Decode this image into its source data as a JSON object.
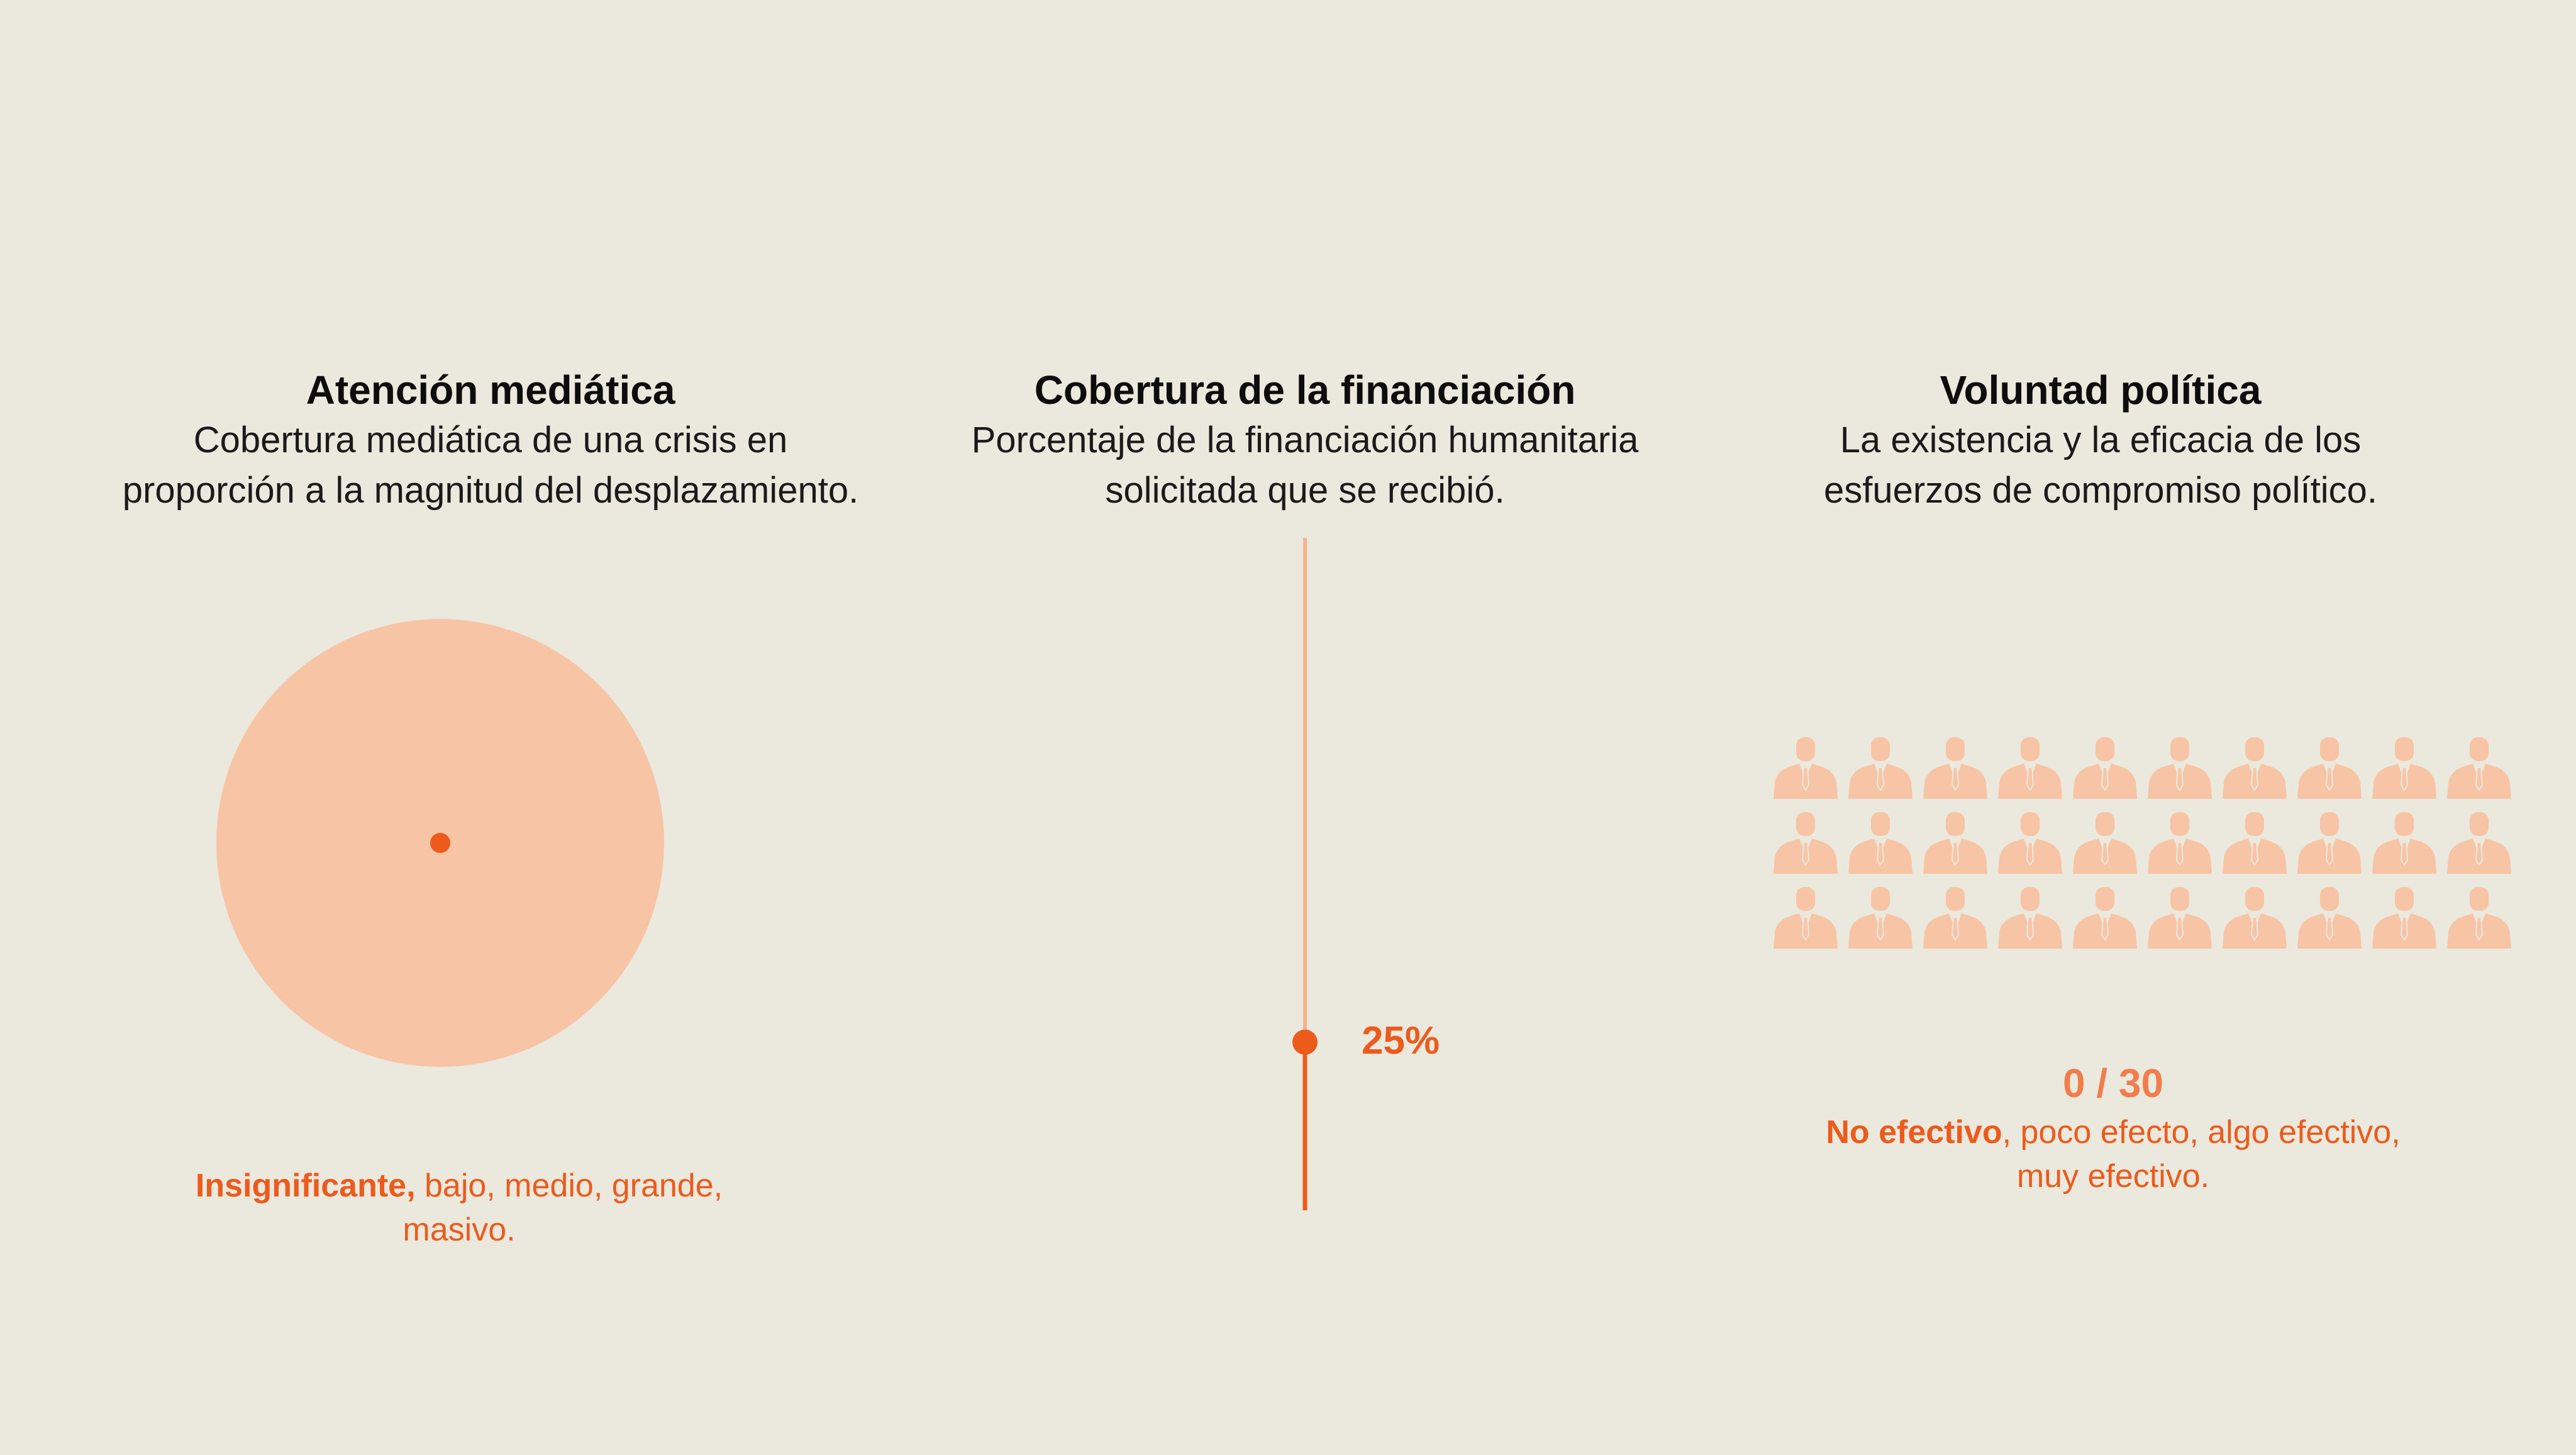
{
  "colors": {
    "background": "#ebe8dd",
    "accent": "#ec5a1c",
    "accent_light": "#f7c4a5",
    "accent_line": "#f5b28c"
  },
  "media_attention": {
    "title": "Atención mediática",
    "description_line1": "Cobertura mediática de una crisis en",
    "description_line2": "proporción a la magnitud del desplazamiento.",
    "scale_highlight": "Insignificante,",
    "scale_rest_line1": " bajo, medio, grande,",
    "scale_rest_line2": "masivo.",
    "level": "Insignificante"
  },
  "funding_coverage": {
    "title": "Cobertura de la financiación",
    "description_line1": "Porcentaje de la financiación humanitaria",
    "description_line2": "solicitada que se recibió.",
    "value_label": "25%",
    "value_fraction": 0.25
  },
  "political_will": {
    "title": "Voluntad política",
    "description_line1": "La existencia y la eficacia de los",
    "description_line2": "esfuerzos de compromiso político.",
    "count_label": "0 / 30",
    "count_value": 0,
    "count_total": 30,
    "icon": "person-in-suit-icon",
    "scale_highlight": "No efectivo",
    "scale_rest_line1": ", poco efecto, algo efectivo,",
    "scale_rest_line2": "muy efectivo."
  }
}
